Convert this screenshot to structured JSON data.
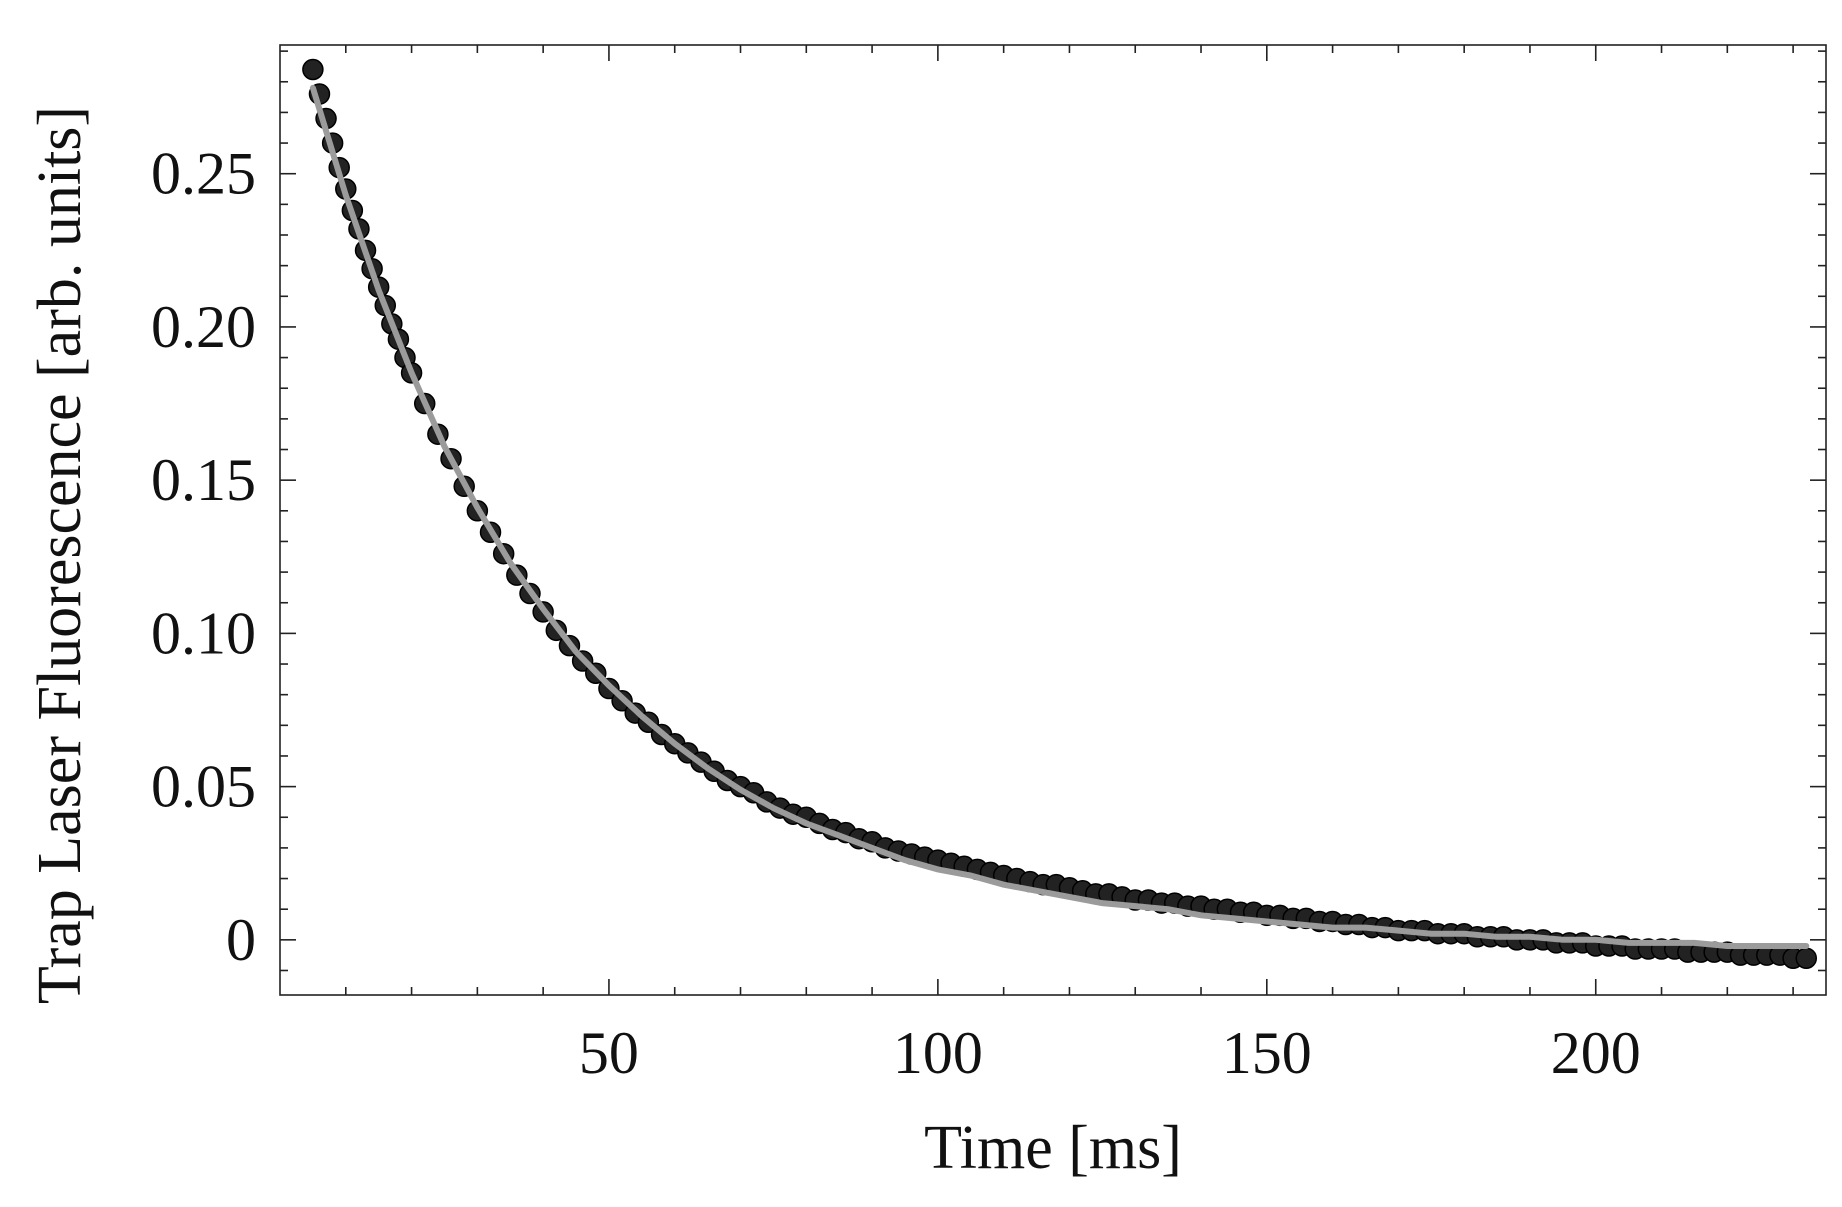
{
  "chart_data": {
    "type": "scatter",
    "title": "",
    "xlabel": "Time [ms]",
    "ylabel": "Trap Laser Fluorescence  [arb. units]",
    "xlim": [
      0,
      235
    ],
    "ylim": [
      -0.018,
      0.292
    ],
    "x_ticks": [
      {
        "value": 50,
        "label": "50"
      },
      {
        "value": 100,
        "label": "100"
      },
      {
        "value": 150,
        "label": "150"
      },
      {
        "value": 200,
        "label": "200"
      }
    ],
    "y_ticks": [
      {
        "value": 0,
        "label": "0"
      },
      {
        "value": 0.05,
        "label": "0.05"
      },
      {
        "value": 0.1,
        "label": "0.10"
      },
      {
        "value": 0.15,
        "label": "0.15"
      },
      {
        "value": 0.2,
        "label": "0.20"
      },
      {
        "value": 0.25,
        "label": "0.25"
      }
    ],
    "grid": false,
    "legend": "none",
    "colors": {
      "data": "#222222",
      "fit": "#9b9b9b"
    },
    "series": [
      {
        "kind": "points",
        "x": [
          5,
          6,
          7,
          8,
          9,
          10,
          11,
          12,
          13,
          14,
          15,
          16,
          17,
          18,
          19,
          20,
          22,
          24,
          26,
          28,
          30,
          32,
          34,
          36,
          38,
          40,
          42,
          44,
          46,
          48,
          50,
          52,
          54,
          56,
          58,
          60,
          62,
          64,
          66,
          68,
          70,
          72,
          74,
          76,
          78,
          80,
          82,
          84,
          86,
          88,
          90,
          92,
          94,
          96,
          98,
          100,
          102,
          104,
          106,
          108,
          110,
          112,
          114,
          116,
          118,
          120,
          122,
          124,
          126,
          128,
          130,
          132,
          134,
          136,
          138,
          140,
          142,
          144,
          146,
          148,
          150,
          152,
          154,
          156,
          158,
          160,
          162,
          164,
          166,
          168,
          170,
          172,
          174,
          176,
          178,
          180,
          182,
          184,
          186,
          188,
          190,
          192,
          194,
          196,
          198,
          200,
          202,
          204,
          206,
          208,
          210,
          212,
          214,
          216,
          218,
          220,
          222,
          224,
          226,
          228,
          230,
          232
        ],
        "y": [
          0.284,
          0.276,
          0.268,
          0.26,
          0.252,
          0.245,
          0.238,
          0.232,
          0.225,
          0.219,
          0.213,
          0.207,
          0.201,
          0.196,
          0.19,
          0.185,
          0.175,
          0.165,
          0.157,
          0.148,
          0.14,
          0.133,
          0.126,
          0.119,
          0.113,
          0.107,
          0.101,
          0.096,
          0.091,
          0.087,
          0.082,
          0.078,
          0.074,
          0.071,
          0.067,
          0.064,
          0.061,
          0.058,
          0.055,
          0.052,
          0.05,
          0.048,
          0.045,
          0.043,
          0.041,
          0.04,
          0.038,
          0.036,
          0.035,
          0.033,
          0.032,
          0.03,
          0.029,
          0.028,
          0.027,
          0.026,
          0.025,
          0.024,
          0.023,
          0.022,
          0.021,
          0.02,
          0.019,
          0.018,
          0.018,
          0.017,
          0.016,
          0.015,
          0.015,
          0.014,
          0.013,
          0.013,
          0.012,
          0.012,
          0.011,
          0.011,
          0.01,
          0.01,
          0.009,
          0.009,
          0.008,
          0.008,
          0.007,
          0.007,
          0.006,
          0.006,
          0.005,
          0.005,
          0.004,
          0.004,
          0.003,
          0.003,
          0.003,
          0.002,
          0.002,
          0.002,
          0.001,
          0.001,
          0.001,
          0.0,
          0.0,
          0.0,
          -0.001,
          -0.001,
          -0.001,
          -0.002,
          -0.002,
          -0.002,
          -0.003,
          -0.003,
          -0.003,
          -0.003,
          -0.004,
          -0.004,
          -0.004,
          -0.004,
          -0.005,
          -0.005,
          -0.005,
          -0.005,
          -0.006,
          -0.006
        ]
      },
      {
        "kind": "fit-line",
        "x": [
          5,
          10,
          15,
          20,
          25,
          30,
          35,
          40,
          45,
          50,
          55,
          60,
          65,
          70,
          75,
          80,
          85,
          90,
          95,
          100,
          105,
          110,
          115,
          120,
          125,
          130,
          135,
          140,
          145,
          150,
          155,
          160,
          165,
          170,
          175,
          180,
          185,
          190,
          195,
          200,
          205,
          210,
          215,
          220,
          225,
          230,
          232
        ],
        "y": [
          0.278,
          0.243,
          0.212,
          0.185,
          0.161,
          0.141,
          0.123,
          0.108,
          0.094,
          0.083,
          0.073,
          0.064,
          0.056,
          0.049,
          0.043,
          0.038,
          0.034,
          0.03,
          0.026,
          0.023,
          0.021,
          0.018,
          0.016,
          0.014,
          0.012,
          0.011,
          0.01,
          0.008,
          0.007,
          0.006,
          0.005,
          0.004,
          0.004,
          0.003,
          0.002,
          0.002,
          0.001,
          0.001,
          0.0,
          0.0,
          -0.001,
          -0.001,
          -0.001,
          -0.002,
          -0.002,
          -0.002,
          -0.002
        ]
      }
    ]
  }
}
